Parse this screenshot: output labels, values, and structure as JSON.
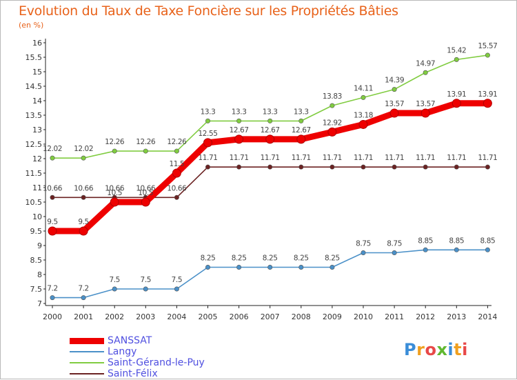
{
  "chart_data": {
    "type": "line",
    "title": "Evolution du Taux de Taxe Foncière sur les Propriétés Bâties",
    "ylabel": "(en %)",
    "xlabel": "",
    "x": [
      "2000",
      "2001",
      "2002",
      "2003",
      "2004",
      "2005",
      "2006",
      "2007",
      "2008",
      "2009",
      "2010",
      "2011",
      "2012",
      "2013",
      "2014"
    ],
    "ylim": [
      7,
      16
    ],
    "yticks": [
      "7",
      "7.5",
      "8",
      "8.5",
      "9",
      "9.5",
      "10",
      "10.5",
      "11",
      "11.5",
      "12",
      "12.5",
      "13",
      "13.5",
      "14",
      "14.5",
      "15",
      "15.5",
      "16"
    ],
    "grid": false,
    "legend_position": "bottom-left",
    "series": [
      {
        "name": "Saint-Félix",
        "color": "#6b2222",
        "values": [
          10.66,
          10.66,
          10.66,
          10.66,
          10.66,
          11.71,
          11.71,
          11.71,
          11.71,
          11.71,
          11.71,
          11.71,
          11.71,
          11.71,
          11.71
        ],
        "labels": [
          "10.66",
          "10.66",
          "10.66",
          "10.66",
          "10.66",
          "11.71",
          "11.71",
          "11.71",
          "11.71",
          "11.71",
          "11.71",
          "11.71",
          "11.71",
          "11.71",
          "11.71"
        ]
      },
      {
        "name": "Saint-Gérand-le-Puy",
        "color": "#80cc40",
        "values": [
          12.02,
          12.02,
          12.26,
          12.26,
          12.26,
          13.3,
          13.3,
          13.3,
          13.3,
          13.83,
          14.11,
          14.39,
          14.97,
          15.42,
          15.57
        ],
        "labels": [
          "12.02",
          "12.02",
          "12.26",
          "12.26",
          "12.26",
          "13.3",
          "13.3",
          "13.3",
          "13.3",
          "13.83",
          "14.11",
          "14.39",
          "14.97",
          "15.42",
          "15.57"
        ]
      },
      {
        "name": "Langy",
        "color": "#4a90c8",
        "values": [
          7.2,
          7.2,
          7.5,
          7.5,
          7.5,
          8.25,
          8.25,
          8.25,
          8.25,
          8.25,
          8.75,
          8.75,
          8.85,
          8.85,
          8.85
        ],
        "labels": [
          "7.2",
          "7.2",
          "7.5",
          "7.5",
          "7.5",
          "8.25",
          "8.25",
          "8.25",
          "8.25",
          "8.25",
          "8.75",
          "8.75",
          "8.85",
          "8.85",
          "8.85"
        ]
      },
      {
        "name": "SANSSAT",
        "color": "#ee0000",
        "values": [
          9.5,
          9.5,
          10.5,
          10.5,
          11.5,
          12.55,
          12.67,
          12.67,
          12.67,
          12.92,
          13.18,
          13.57,
          13.57,
          13.91,
          13.91
        ],
        "labels": [
          "9.5",
          "9.5",
          "10.5",
          "10.5",
          "11.5",
          "12.55",
          "12.67",
          "12.67",
          "12.67",
          "12.92",
          "13.18",
          "13.57",
          "13.57",
          "13.91",
          "13.91"
        ]
      }
    ],
    "legend": [
      "SANSSAT",
      "Langy",
      "Saint-Gérand-le-Puy",
      "Saint-Félix"
    ]
  },
  "logo": {
    "letters": [
      "P",
      "r",
      "o",
      "x",
      "i",
      "t",
      "i"
    ],
    "colors": [
      "#3a8dd8",
      "#f0a020",
      "#e84848",
      "#60b830",
      "#3a8dd8",
      "#f0a020",
      "#e84848"
    ]
  }
}
